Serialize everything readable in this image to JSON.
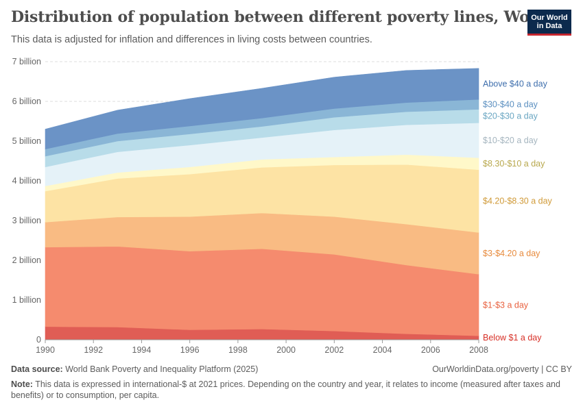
{
  "header": {
    "title": "Distribution of population between different poverty lines, World",
    "subtitle": "This data is adjusted for inflation and differences in living costs between countries."
  },
  "logo": {
    "line1": "Our World",
    "line2": "in Data",
    "bg": "#0c2a4d",
    "accent": "#c6262e"
  },
  "footer": {
    "source_label": "Data source:",
    "source_text": "World Bank Poverty and Inequality Platform (2025)",
    "credit": "OurWorldinData.org/poverty | CC BY",
    "note_label": "Note:",
    "note_text": "This data is expressed in international-$ at 2021 prices. Depending on the country and year, it relates to income (measured after taxes and benefits) or to consumption, per capita."
  },
  "chart_data": {
    "type": "area",
    "stacked": true,
    "x": [
      1990,
      1993,
      1996,
      1999,
      2002,
      2005,
      2008
    ],
    "xticks": [
      1990,
      1992,
      1994,
      1996,
      1998,
      2000,
      2002,
      2004,
      2006,
      2008
    ],
    "yticks": [
      0,
      1,
      2,
      3,
      4,
      5,
      6,
      7
    ],
    "ytick_labels": [
      "0",
      "1 billion",
      "2 billion",
      "3 billion",
      "4 billion",
      "5 billion",
      "6 billion",
      "7 billion"
    ],
    "ylim": [
      0,
      7
    ],
    "xlim": [
      1990,
      2008
    ],
    "grid": "horizontal-dashed",
    "series": [
      {
        "name": "Below $1 a day",
        "color": "#e05d55",
        "label_color": "#d73027",
        "values": [
          0.33,
          0.32,
          0.25,
          0.27,
          0.22,
          0.15,
          0.1
        ]
      },
      {
        "name": "$1-$3 a day",
        "color": "#f58b6e",
        "label_color": "#e8613f",
        "values": [
          2.0,
          2.03,
          1.98,
          2.02,
          1.93,
          1.73,
          1.55
        ]
      },
      {
        "name": "$3-$4.20 a day",
        "color": "#f9bb83",
        "label_color": "#e78a3c",
        "values": [
          0.63,
          0.74,
          0.87,
          0.9,
          0.95,
          1.03,
          1.05
        ]
      },
      {
        "name": "$4.20-$8.30 a day",
        "color": "#fde3a4",
        "label_color": "#d09a38",
        "values": [
          0.78,
          0.97,
          1.07,
          1.15,
          1.3,
          1.5,
          1.58
        ]
      },
      {
        "name": "$8.30-$10 a day",
        "color": "#fff8c9",
        "label_color": "#b8a84d",
        "values": [
          0.13,
          0.15,
          0.18,
          0.2,
          0.2,
          0.25,
          0.3
        ]
      },
      {
        "name": "$10-$20 a day",
        "color": "#e5f2f8",
        "label_color": "#a5b5bf",
        "values": [
          0.48,
          0.52,
          0.55,
          0.55,
          0.68,
          0.75,
          0.88
        ]
      },
      {
        "name": "$20-$30 a day",
        "color": "#b8dce9",
        "label_color": "#6aa6c2",
        "values": [
          0.27,
          0.27,
          0.28,
          0.28,
          0.32,
          0.33,
          0.34
        ]
      },
      {
        "name": "$30-$40 a day",
        "color": "#8ab6d6",
        "label_color": "#5b8fc0",
        "values": [
          0.18,
          0.19,
          0.2,
          0.21,
          0.22,
          0.23,
          0.25
        ]
      },
      {
        "name": "Above $40 a day",
        "color": "#6b93c6",
        "label_color": "#3f6fad",
        "values": [
          0.5,
          0.59,
          0.69,
          0.75,
          0.79,
          0.81,
          0.78
        ]
      }
    ]
  }
}
